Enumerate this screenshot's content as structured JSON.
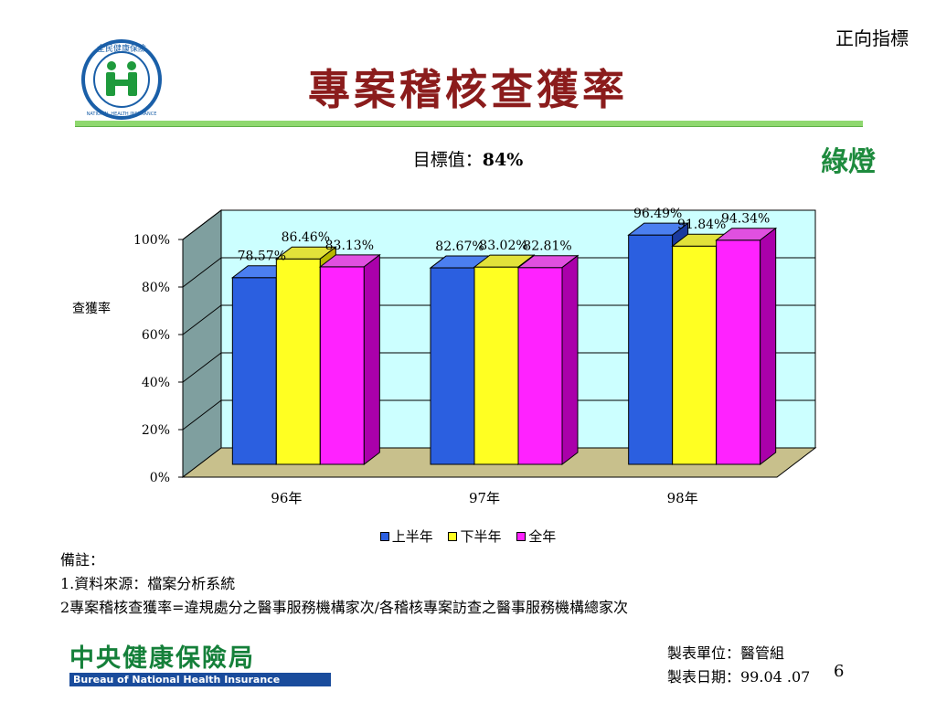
{
  "header": {
    "indicator_label": "正向指標",
    "title": "專案稽核查獲率",
    "target_label": "目標值：",
    "target_value": "84%",
    "status_light": "綠燈"
  },
  "logo": {
    "ring_text": "全民健康保險",
    "sub_text": "NATIONAL HEALTH INSURANCE",
    "colors": {
      "ring": "#1a5fa8",
      "figures": "#1e9a3c"
    }
  },
  "chart_data": {
    "type": "bar",
    "categories": [
      "96年",
      "97年",
      "98年"
    ],
    "series": [
      {
        "name": "上半年",
        "values": [
          78.57,
          82.67,
          96.49
        ],
        "labels": [
          "78.57%",
          "82.67%",
          "96.49%"
        ],
        "color": "#2b5fe0",
        "side": "#1b3a9e",
        "top": "#4b7ff0"
      },
      {
        "name": "下半年",
        "values": [
          86.46,
          83.02,
          91.84
        ],
        "labels": [
          "86.46%",
          "83.02%",
          "91.84%"
        ],
        "color": "#ffff22",
        "side": "#b8b800",
        "top": "#e2e23a"
      },
      {
        "name": "全年",
        "values": [
          83.13,
          82.81,
          94.34
        ],
        "labels": [
          "83.13%",
          "82.81%",
          "94.34%"
        ],
        "color": "#ff22ff",
        "side": "#aa00aa",
        "top": "#e050e0"
      }
    ],
    "ylabel": "查獲率",
    "ylim": [
      0,
      100
    ],
    "yticks": [
      "0%",
      "20%",
      "40%",
      "60%",
      "80%",
      "100%"
    ],
    "grid": true,
    "legend": "bottom",
    "colors": {
      "wall": "#ccffff",
      "side_wall": "#7f9f9f",
      "floor": "#c8c08c"
    }
  },
  "notes": {
    "heading": "備註：",
    "line1": "1.資料來源：檔案分析系統",
    "line2": "2專案稽核查獲率=違規處分之醫事服務機構家次/各稽核專案訪查之醫事服務機構總家次"
  },
  "footer": {
    "bureau_zh": "中央健康保險局",
    "bureau_en": "Bureau of National Health Insurance",
    "unit_label": "製表單位：醫管組",
    "date_label": "製表日期：99.04 .07",
    "page_number": "6"
  }
}
